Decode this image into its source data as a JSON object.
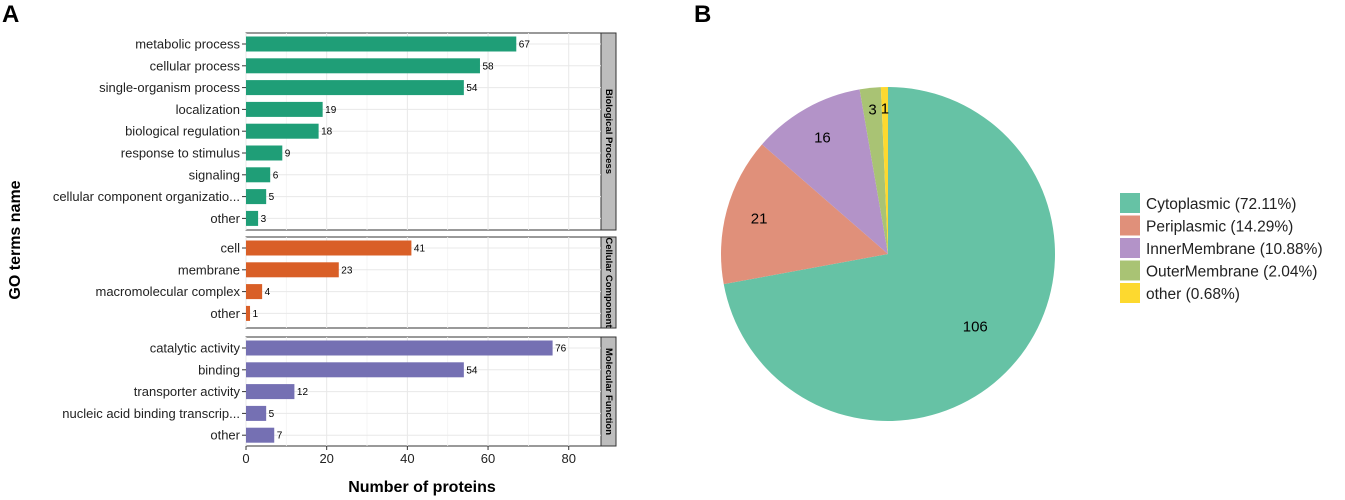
{
  "panels": {
    "a": "A",
    "b": "B"
  },
  "chart_data": [
    {
      "type": "bar",
      "orientation": "horizontal",
      "xlabel": "Number of proteins",
      "ylabel": "GO terms name",
      "xlim": [
        0,
        88
      ],
      "xticks": [
        0,
        20,
        40,
        60,
        80
      ],
      "grid": true,
      "facets": [
        {
          "name": "Biological Process",
          "color": "#1f9e77",
          "categories": [
            "metabolic process",
            "cellular process",
            "single-organism process",
            "localization",
            "biological regulation",
            "response to stimulus",
            "signaling",
            "cellular component organizatio...",
            "other"
          ],
          "values": [
            67,
            58,
            54,
            19,
            18,
            9,
            6,
            5,
            3
          ]
        },
        {
          "name": "Cellular Component",
          "color": "#d95f27",
          "categories": [
            "cell",
            "membrane",
            "macromolecular complex",
            "other"
          ],
          "values": [
            41,
            23,
            4,
            1
          ]
        },
        {
          "name": "Molecular Function",
          "color": "#7570b3",
          "categories": [
            "catalytic activity",
            "binding",
            "transporter activity",
            "nucleic acid binding transcrip...",
            "other"
          ],
          "values": [
            76,
            54,
            12,
            5,
            7
          ]
        }
      ]
    },
    {
      "type": "pie",
      "slices": [
        {
          "label": "Cytoplasmic",
          "value": 106,
          "percent_label": "(72.11%)",
          "color": "#66c2a5"
        },
        {
          "label": "Periplasmic",
          "value": 21,
          "percent_label": "(14.29%)",
          "color": "#e0907a"
        },
        {
          "label": "InnerMembrane",
          "value": 16,
          "percent_label": "(10.88%)",
          "color": "#b393c8"
        },
        {
          "label": "OuterMembrane",
          "value": 3,
          "percent_label": "(2.04%)",
          "color": "#a9c374"
        },
        {
          "label": "other",
          "value": 1,
          "percent_label": "(0.68%)",
          "color": "#fdd92f"
        }
      ]
    }
  ]
}
